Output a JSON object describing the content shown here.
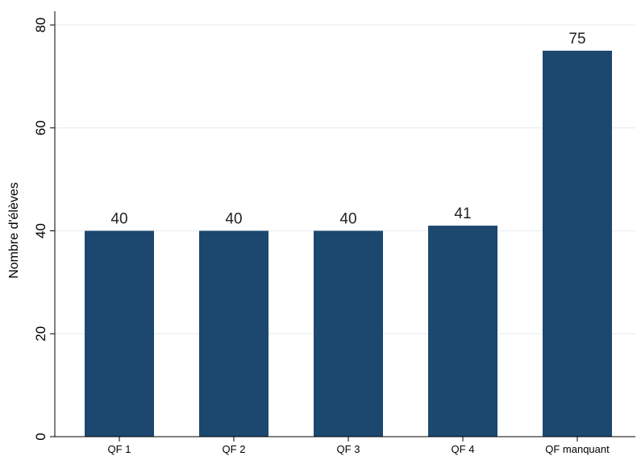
{
  "chart_data": {
    "type": "bar",
    "categories": [
      "QF 1",
      "QF 2",
      "QF 3",
      "QF 4",
      "QF manquant"
    ],
    "values": [
      40,
      40,
      40,
      41,
      75
    ],
    "data_labels": [
      "40",
      "40",
      "40",
      "41",
      "75"
    ],
    "title": "",
    "xlabel": "",
    "ylabel": "Nombre d'élèves",
    "ylim": [
      0,
      80
    ],
    "yticks": [
      0,
      20,
      40,
      60,
      80
    ],
    "grid": true,
    "legend": "none",
    "colors": {
      "bar": "#1c476f",
      "grid": "#e9eef3",
      "axis": "#000000",
      "background": "#ffffff"
    }
  }
}
